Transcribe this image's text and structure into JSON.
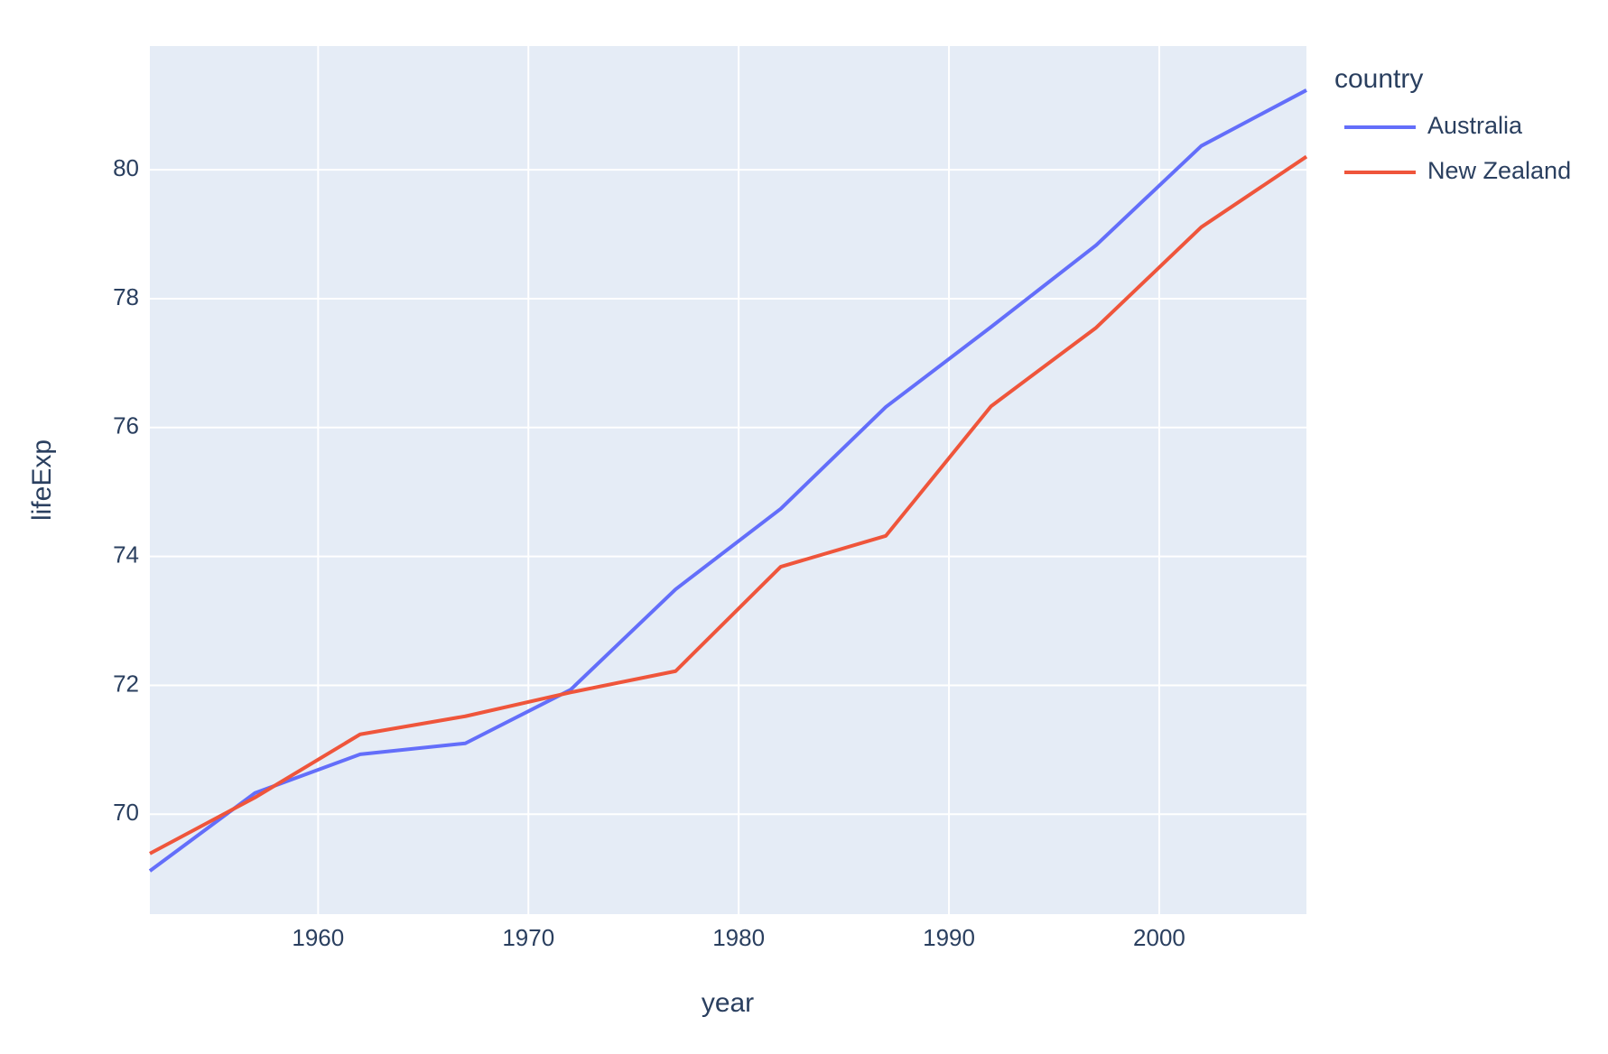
{
  "chart_data": {
    "type": "line",
    "x_label": "year",
    "y_label": "lifeExp",
    "legend_title": "country",
    "x": [
      1952,
      1957,
      1962,
      1967,
      1972,
      1977,
      1982,
      1987,
      1992,
      1997,
      2002,
      2007
    ],
    "series": [
      {
        "name": "Australia",
        "color": "#636efa",
        "values": [
          69.12,
          70.33,
          70.93,
          71.1,
          71.93,
          73.49,
          74.74,
          76.32,
          77.56,
          78.83,
          80.37,
          81.235
        ]
      },
      {
        "name": "New Zealand",
        "color": "#ef553b",
        "values": [
          69.39,
          70.26,
          71.24,
          71.52,
          71.89,
          72.22,
          73.84,
          74.32,
          76.33,
          77.55,
          79.11,
          80.204
        ]
      }
    ],
    "xlim": [
      1952,
      2007
    ],
    "xticks": [
      1960,
      1970,
      1980,
      1990,
      2000
    ],
    "ylim": [
      68.45,
      81.92
    ],
    "yticks": [
      70,
      72,
      74,
      76,
      78,
      80
    ],
    "grid": true,
    "legend": "right"
  }
}
